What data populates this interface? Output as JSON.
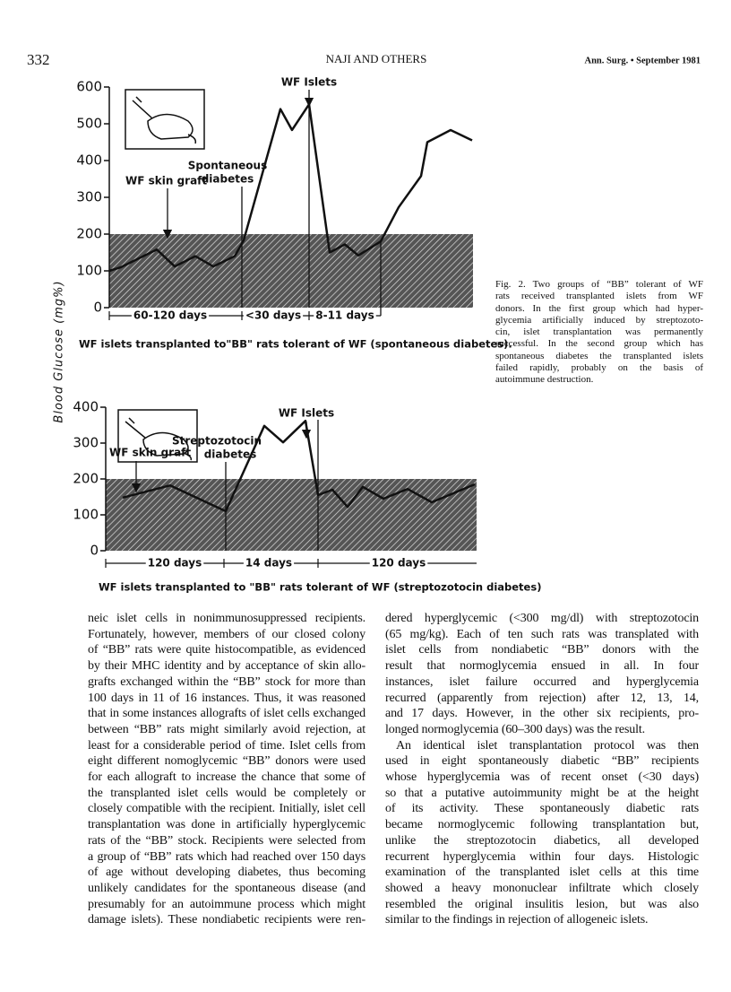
{
  "header": {
    "page_number": "332",
    "running_title": "NAJI AND OTHERS",
    "journal": "Ann. Surg. • September 1981"
  },
  "y_axis_label": "Blood Glucose (mg%)",
  "chart_data": [
    {
      "type": "line",
      "categories": [
        null,
        null,
        null,
        null,
        null,
        null,
        null,
        null,
        null,
        null,
        null,
        null,
        null,
        null,
        null,
        null,
        null,
        null,
        null,
        null
      ],
      "values": [
        100,
        110,
        158,
        112,
        140,
        112,
        140,
        183,
        540,
        483,
        553,
        150,
        172,
        142,
        180,
        273,
        358,
        450,
        483,
        455
      ],
      "color": "#111111",
      "ylim": [
        0,
        600
      ],
      "yticks": [
        0,
        100,
        200,
        300,
        400,
        500,
        600
      ],
      "shaded_range": [
        0,
        200
      ],
      "annotations": [
        "WF Islets",
        "Spontaneous",
        "diabetes",
        "WF skin graft"
      ],
      "periods": [
        "60-120 days",
        "<30 days",
        "8-11 days"
      ],
      "caption": "WF islets transplanted to\"BB\" rats tolerant of WF (spontaneous diabetes)."
    },
    {
      "type": "line",
      "categories": [
        null,
        null,
        null,
        null,
        null,
        null,
        null,
        null,
        null,
        null,
        null,
        null,
        null,
        null
      ],
      "values": [
        148,
        182,
        110,
        348,
        302,
        362,
        155,
        170,
        122,
        178,
        145,
        172,
        135,
        185
      ],
      "color": "#111111",
      "ylim": [
        0,
        400
      ],
      "yticks": [
        0,
        100,
        200,
        300,
        400
      ],
      "shaded_range": [
        0,
        200
      ],
      "annotations": [
        "WF Islets",
        "WF skin graft",
        "Streptozotocin",
        "diabetes"
      ],
      "periods": [
        "120 days",
        "14 days",
        "120 days"
      ],
      "caption": "WF islets transplanted to \"BB\" rats tolerant of WF (streptozotocin diabetes)"
    }
  ],
  "figure_caption": [
    "Fig. 2. Two groups of “BB” tolerant of WF",
    "rats received transplanted islets from WF",
    "donors. In the first group which had hyper-",
    "glycemia artificially induced by streptozoto-",
    "cin, islet transplantation was permanently",
    "successful. In the second group which has",
    "spontaneous diabetes the transplanted islets",
    "failed rapidly, probably on the basis of",
    "autoimmune destruction."
  ],
  "body": {
    "left_column": [
      "neic islet cells in nonimmunosuppressed recipients.",
      "Fortunately, however, members of our closed colony",
      "of “BB” rats were quite histocompatible, as evidenced",
      "by their MHC identity and by acceptance of skin allo-",
      "grafts exchanged within the “BB” stock for more than",
      "100 days in 11 of 16 instances. Thus, it was reasoned",
      "that in some instances allografts of islet cells exchanged",
      "between “BB” rats might similarly avoid rejection, at",
      "least for a considerable period of time. Islet cells from",
      "eight different nomoglycemic “BB” donors were used",
      "for each allograft to increase the chance that some of",
      "the transplanted islet cells would be completely or",
      "closely compatible with the recipient. Initially, islet cell",
      "transplantation was done in artificially hyperglycemic",
      "rats of the “BB” stock. Recipients were selected from",
      "a group of “BB” rats which had reached over 150 days",
      "of age without developing diabetes, thus becoming",
      "unlikely candidates for the spontaneous disease (and",
      "presumably for an autoimmune process which might",
      "damage islets). These nondiabetic recipients were ren-"
    ],
    "right_column": [
      "dered hyperglycemic (<300 mg/dl) with streptozotocin",
      "(65 mg/kg). Each of ten such rats was transplated with",
      "islet cells from nondiabetic “BB” donors with the",
      "result that normoglycemia ensued in all. In four",
      "instances, islet failure occurred and hyperglycemia",
      "recurred (apparently from rejection) after 12, 13, 14,",
      "and 17 days. However, in the other six recipients, pro-",
      "longed normoglycemia (60–300 days) was the result.",
      "An identical islet transplantation protocol was then",
      "used in eight spontaneously diabetic “BB” recipients",
      "whose hyperglycemia was of recent onset (<30 days)",
      "so that a putative autoimmunity might be at the height",
      "of its activity. These spontaneously diabetic rats",
      "became normoglycemic following transplantation but,",
      "unlike the streptozotocin diabetics, all developed",
      "recurrent hyperglycemia within four days. Histologic",
      "examination of the transplanted islet cells at this time",
      "showed a heavy mononuclear infiltrate which closely",
      "resembled the original insulitis lesion, but was also",
      "similar to the findings in rejection of allogeneic islets."
    ]
  }
}
